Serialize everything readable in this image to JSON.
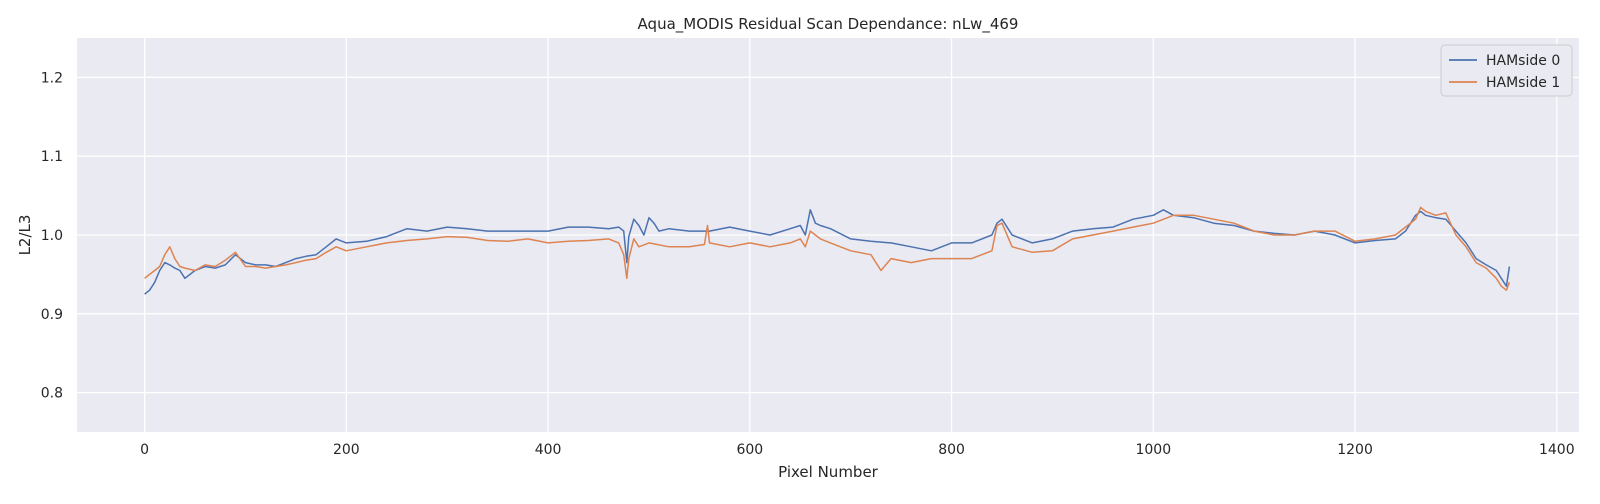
{
  "chart_data": {
    "type": "line",
    "title": "Aqua_MODIS Residual Scan Dependance: nLw_469",
    "xlabel": "Pixel Number",
    "ylabel": "L2/L3",
    "xlim": [
      -67,
      1422
    ],
    "ylim": [
      0.75,
      1.25
    ],
    "xticks": [
      0,
      200,
      400,
      600,
      800,
      1000,
      1200,
      1400
    ],
    "xtick_labels": [
      "0",
      "200",
      "400",
      "600",
      "800",
      "1000",
      "1200",
      "1400"
    ],
    "yticks": [
      0.8,
      0.9,
      1.0,
      1.1,
      1.2
    ],
    "ytick_labels": [
      "0.8",
      "0.9",
      "1.0",
      "1.1",
      "1.2"
    ],
    "grid": true,
    "legend_position": "top-right",
    "series": [
      {
        "name": "HAMside 0",
        "color": "#4c72b0",
        "x": [
          0,
          5,
          10,
          15,
          20,
          25,
          30,
          35,
          40,
          50,
          60,
          70,
          80,
          90,
          100,
          110,
          120,
          130,
          140,
          150,
          160,
          170,
          180,
          190,
          200,
          220,
          240,
          260,
          280,
          300,
          320,
          340,
          360,
          380,
          400,
          420,
          440,
          460,
          470,
          475,
          478,
          480,
          485,
          490,
          495,
          500,
          505,
          510,
          520,
          540,
          560,
          580,
          600,
          620,
          640,
          650,
          655,
          660,
          665,
          670,
          680,
          700,
          720,
          740,
          760,
          780,
          800,
          820,
          840,
          845,
          850,
          860,
          880,
          900,
          920,
          940,
          960,
          980,
          1000,
          1010,
          1020,
          1040,
          1060,
          1080,
          1100,
          1120,
          1140,
          1160,
          1180,
          1200,
          1220,
          1240,
          1250,
          1260,
          1265,
          1270,
          1280,
          1290,
          1300,
          1310,
          1320,
          1330,
          1340,
          1345,
          1350,
          1353
        ],
        "values": [
          0.925,
          0.93,
          0.94,
          0.955,
          0.965,
          0.962,
          0.958,
          0.955,
          0.945,
          0.955,
          0.96,
          0.958,
          0.962,
          0.975,
          0.965,
          0.962,
          0.962,
          0.96,
          0.965,
          0.97,
          0.973,
          0.975,
          0.985,
          0.995,
          0.99,
          0.992,
          0.998,
          1.008,
          1.005,
          1.01,
          1.008,
          1.005,
          1.005,
          1.005,
          1.005,
          1.01,
          1.01,
          1.008,
          1.01,
          1.005,
          0.965,
          0.998,
          1.02,
          1.012,
          1.0,
          1.022,
          1.015,
          1.005,
          1.008,
          1.005,
          1.005,
          1.01,
          1.005,
          1.0,
          1.008,
          1.012,
          1.0,
          1.032,
          1.015,
          1.012,
          1.008,
          0.995,
          0.992,
          0.99,
          0.985,
          0.98,
          0.99,
          0.99,
          1.0,
          1.015,
          1.02,
          1.0,
          0.99,
          0.995,
          1.005,
          1.008,
          1.01,
          1.02,
          1.025,
          1.032,
          1.025,
          1.022,
          1.015,
          1.012,
          1.005,
          1.002,
          1.0,
          1.005,
          1.0,
          0.99,
          0.993,
          0.995,
          1.005,
          1.025,
          1.03,
          1.025,
          1.022,
          1.02,
          1.005,
          0.99,
          0.97,
          0.962,
          0.955,
          0.945,
          0.935,
          0.96
        ]
      },
      {
        "name": "HAMside 1",
        "color": "#dd8452",
        "x": [
          0,
          5,
          10,
          15,
          20,
          25,
          30,
          35,
          40,
          50,
          60,
          70,
          80,
          90,
          100,
          110,
          120,
          130,
          140,
          150,
          160,
          170,
          180,
          190,
          200,
          220,
          240,
          260,
          280,
          300,
          320,
          340,
          360,
          380,
          400,
          420,
          440,
          460,
          470,
          475,
          478,
          480,
          485,
          490,
          500,
          520,
          540,
          555,
          558,
          560,
          580,
          600,
          620,
          640,
          650,
          655,
          660,
          670,
          680,
          700,
          720,
          730,
          740,
          760,
          780,
          800,
          820,
          840,
          845,
          850,
          860,
          880,
          900,
          920,
          940,
          960,
          980,
          1000,
          1020,
          1040,
          1060,
          1080,
          1100,
          1120,
          1140,
          1160,
          1180,
          1200,
          1220,
          1240,
          1250,
          1260,
          1265,
          1270,
          1280,
          1290,
          1300,
          1310,
          1320,
          1330,
          1340,
          1345,
          1350,
          1353
        ],
        "values": [
          0.945,
          0.95,
          0.955,
          0.96,
          0.975,
          0.985,
          0.97,
          0.96,
          0.958,
          0.955,
          0.962,
          0.96,
          0.968,
          0.978,
          0.96,
          0.96,
          0.958,
          0.96,
          0.962,
          0.965,
          0.968,
          0.97,
          0.978,
          0.985,
          0.98,
          0.985,
          0.99,
          0.993,
          0.995,
          0.998,
          0.997,
          0.993,
          0.992,
          0.995,
          0.99,
          0.992,
          0.993,
          0.995,
          0.99,
          0.975,
          0.945,
          0.97,
          0.995,
          0.985,
          0.99,
          0.985,
          0.985,
          0.988,
          1.012,
          0.99,
          0.985,
          0.99,
          0.985,
          0.99,
          0.995,
          0.985,
          1.005,
          0.995,
          0.99,
          0.98,
          0.975,
          0.955,
          0.97,
          0.965,
          0.97,
          0.97,
          0.97,
          0.98,
          1.012,
          1.015,
          0.985,
          0.978,
          0.98,
          0.995,
          1.0,
          1.005,
          1.01,
          1.015,
          1.025,
          1.025,
          1.02,
          1.015,
          1.005,
          1.0,
          1.0,
          1.005,
          1.005,
          0.992,
          0.995,
          1.0,
          1.01,
          1.02,
          1.035,
          1.03,
          1.025,
          1.028,
          1.0,
          0.985,
          0.965,
          0.958,
          0.945,
          0.935,
          0.93,
          0.94
        ]
      }
    ]
  }
}
